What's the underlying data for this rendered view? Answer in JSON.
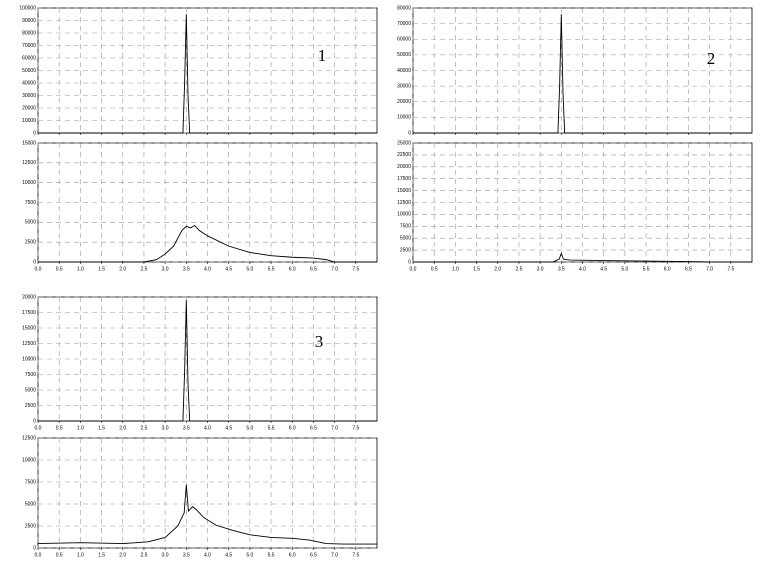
{
  "chart_data": [
    {
      "type": "line",
      "annotation": "1",
      "show_xtick_labels": false,
      "grid": true,
      "xlim": [
        0,
        8
      ],
      "ylim": [
        0,
        100000
      ],
      "xticks": [
        {
          "value": 0,
          "label": "0.0"
        },
        {
          "value": 0.5,
          "label": "0.5"
        },
        {
          "value": 1,
          "label": "1.0"
        },
        {
          "value": 1.5,
          "label": "1.5"
        },
        {
          "value": 2,
          "label": "2.0"
        },
        {
          "value": 2.5,
          "label": "2.5"
        },
        {
          "value": 3,
          "label": "3.0"
        },
        {
          "value": 3.5,
          "label": "3.5"
        },
        {
          "value": 4,
          "label": "4.0"
        },
        {
          "value": 4.5,
          "label": "4.5"
        },
        {
          "value": 5,
          "label": "5.0"
        },
        {
          "value": 5.5,
          "label": "5.5"
        },
        {
          "value": 6,
          "label": "6.0"
        },
        {
          "value": 6.5,
          "label": "6.5"
        },
        {
          "value": 7,
          "label": "7.0"
        },
        {
          "value": 7.5,
          "label": "7.5"
        }
      ],
      "yticks": [
        0,
        10000,
        20000,
        30000,
        40000,
        50000,
        60000,
        70000,
        80000,
        90000,
        100000
      ],
      "x": [
        0,
        3.42,
        3.46,
        3.5,
        3.54,
        3.58,
        8
      ],
      "series": [
        {
          "color": "#000000",
          "values": [
            0,
            0,
            40000,
            95000,
            30000,
            0,
            0
          ]
        }
      ]
    },
    {
      "type": "line",
      "show_xtick_labels": true,
      "grid": true,
      "xlim": [
        0,
        8
      ],
      "ylim": [
        0,
        15000
      ],
      "xticks": [
        {
          "value": 0,
          "label": "0.0"
        },
        {
          "value": 0.5,
          "label": "0.5"
        },
        {
          "value": 1,
          "label": "1.0"
        },
        {
          "value": 1.5,
          "label": "1.5"
        },
        {
          "value": 2,
          "label": "2.0"
        },
        {
          "value": 2.5,
          "label": "2.5"
        },
        {
          "value": 3,
          "label": "3.0"
        },
        {
          "value": 3.5,
          "label": "3.5"
        },
        {
          "value": 4,
          "label": "4.0"
        },
        {
          "value": 4.5,
          "label": "4.5"
        },
        {
          "value": 5,
          "label": "5.0"
        },
        {
          "value": 5.5,
          "label": "5.5"
        },
        {
          "value": 6,
          "label": "6.0"
        },
        {
          "value": 6.5,
          "label": "6.5"
        },
        {
          "value": 7,
          "label": "7.0"
        },
        {
          "value": 7.5,
          "label": "7.5"
        }
      ],
      "yticks": [
        0,
        2500,
        5000,
        7500,
        10000,
        12500,
        15000
      ],
      "x": [
        0,
        2.5,
        2.8,
        3.0,
        3.2,
        3.4,
        3.5,
        3.6,
        3.7,
        3.8,
        4.0,
        4.5,
        5.0,
        5.5,
        6.0,
        6.5,
        6.8,
        7.0,
        8
      ],
      "series": [
        {
          "color": "#000000",
          "values": [
            0,
            0,
            300,
            1000,
            2000,
            4000,
            4500,
            4300,
            4600,
            4000,
            3300,
            2000,
            1200,
            800,
            600,
            500,
            300,
            0,
            0
          ]
        }
      ]
    },
    {
      "type": "line",
      "annotation": "2",
      "show_xtick_labels": false,
      "grid": true,
      "xlim": [
        0,
        8
      ],
      "ylim": [
        0,
        80000
      ],
      "xticks": [
        {
          "value": 0,
          "label": "0.0"
        },
        {
          "value": 0.5,
          "label": "0.5"
        },
        {
          "value": 1,
          "label": "1.0"
        },
        {
          "value": 1.5,
          "label": "1.5"
        },
        {
          "value": 2,
          "label": "2.0"
        },
        {
          "value": 2.5,
          "label": "2.5"
        },
        {
          "value": 3,
          "label": "3.0"
        },
        {
          "value": 3.5,
          "label": "3.5"
        },
        {
          "value": 4,
          "label": "4.0"
        },
        {
          "value": 4.5,
          "label": "4.5"
        },
        {
          "value": 5,
          "label": "5.0"
        },
        {
          "value": 5.5,
          "label": "5.5"
        },
        {
          "value": 6,
          "label": "6.0"
        },
        {
          "value": 6.5,
          "label": "6.5"
        },
        {
          "value": 7,
          "label": "7.0"
        },
        {
          "value": 7.5,
          "label": "7.5"
        }
      ],
      "yticks": [
        0,
        10000,
        20000,
        30000,
        40000,
        50000,
        60000,
        70000,
        80000
      ],
      "x": [
        0,
        3.42,
        3.46,
        3.5,
        3.54,
        3.58,
        8
      ],
      "series": [
        {
          "color": "#000000",
          "values": [
            0,
            0,
            30000,
            76000,
            25000,
            0,
            0
          ]
        }
      ]
    },
    {
      "type": "line",
      "show_xtick_labels": true,
      "grid": true,
      "xlim": [
        0,
        8
      ],
      "ylim": [
        0,
        25000
      ],
      "xticks": [
        {
          "value": 0,
          "label": "0.0"
        },
        {
          "value": 0.5,
          "label": "0.5"
        },
        {
          "value": 1,
          "label": "1.0"
        },
        {
          "value": 1.5,
          "label": "1.5"
        },
        {
          "value": 2,
          "label": "2.0"
        },
        {
          "value": 2.5,
          "label": "2.5"
        },
        {
          "value": 3,
          "label": "3.0"
        },
        {
          "value": 3.5,
          "label": "3.5"
        },
        {
          "value": 4,
          "label": "4.0"
        },
        {
          "value": 4.5,
          "label": "4.5"
        },
        {
          "value": 5,
          "label": "5.0"
        },
        {
          "value": 5.5,
          "label": "5.5"
        },
        {
          "value": 6,
          "label": "6.0"
        },
        {
          "value": 6.5,
          "label": "6.5"
        },
        {
          "value": 7,
          "label": "7.0"
        },
        {
          "value": 7.5,
          "label": "7.5"
        }
      ],
      "yticks": [
        0,
        2500,
        5000,
        7500,
        10000,
        12500,
        15000,
        17500,
        20000,
        22500,
        25000
      ],
      "x": [
        0,
        3.3,
        3.45,
        3.5,
        3.55,
        3.7,
        4.5,
        5.5,
        6.5,
        7.0,
        8
      ],
      "series": [
        {
          "color": "#000000",
          "values": [
            0,
            0,
            600,
            1800,
            600,
            400,
            300,
            200,
            100,
            0,
            0
          ]
        }
      ]
    },
    {
      "type": "line",
      "annotation": "3",
      "show_xtick_labels": true,
      "grid": true,
      "xlim": [
        0,
        8
      ],
      "ylim": [
        0,
        20000
      ],
      "xticks": [
        {
          "value": 0,
          "label": "0.0"
        },
        {
          "value": 0.5,
          "label": "0.5"
        },
        {
          "value": 1,
          "label": "1.0"
        },
        {
          "value": 1.5,
          "label": "1.5"
        },
        {
          "value": 2,
          "label": "2.0"
        },
        {
          "value": 2.5,
          "label": "2.5"
        },
        {
          "value": 3,
          "label": "3.0"
        },
        {
          "value": 3.5,
          "label": "3.5"
        },
        {
          "value": 4,
          "label": "4.0"
        },
        {
          "value": 4.5,
          "label": "4.5"
        },
        {
          "value": 5,
          "label": "5.0"
        },
        {
          "value": 5.5,
          "label": "5.5"
        },
        {
          "value": 6,
          "label": "6.0"
        },
        {
          "value": 6.5,
          "label": "6.5"
        },
        {
          "value": 7,
          "label": "7.0"
        },
        {
          "value": 7.5,
          "label": "7.5"
        }
      ],
      "yticks": [
        0,
        2500,
        5000,
        7500,
        10000,
        12500,
        15000,
        17500,
        20000
      ],
      "x": [
        0,
        3.42,
        3.46,
        3.5,
        3.54,
        3.58,
        8
      ],
      "series": [
        {
          "color": "#000000",
          "values": [
            0,
            0,
            8000,
            19500,
            6000,
            0,
            0
          ]
        }
      ]
    },
    {
      "type": "line",
      "show_xtick_labels": true,
      "grid": true,
      "xlim": [
        0,
        8
      ],
      "ylim": [
        0,
        12500
      ],
      "xticks": [
        {
          "value": 0,
          "label": "0.0"
        },
        {
          "value": 0.5,
          "label": "0.5"
        },
        {
          "value": 1,
          "label": "1.0"
        },
        {
          "value": 1.5,
          "label": "1.5"
        },
        {
          "value": 2,
          "label": "2.0"
        },
        {
          "value": 2.5,
          "label": "2.5"
        },
        {
          "value": 3,
          "label": "3.0"
        },
        {
          "value": 3.5,
          "label": "3.5"
        },
        {
          "value": 4,
          "label": "4.0"
        },
        {
          "value": 4.5,
          "label": "4.5"
        },
        {
          "value": 5,
          "label": "5.0"
        },
        {
          "value": 5.5,
          "label": "5.5"
        },
        {
          "value": 6,
          "label": "6.0"
        },
        {
          "value": 6.5,
          "label": "6.5"
        },
        {
          "value": 7,
          "label": "7.0"
        },
        {
          "value": 7.5,
          "label": "7.5"
        }
      ],
      "yticks": [
        0,
        2500,
        5000,
        7500,
        10000,
        12500
      ],
      "x": [
        0,
        1.0,
        2.0,
        2.6,
        3.0,
        3.3,
        3.45,
        3.5,
        3.55,
        3.65,
        3.75,
        3.9,
        4.2,
        4.6,
        5.0,
        5.5,
        6.0,
        6.4,
        6.8,
        7.2,
        8
      ],
      "series": [
        {
          "color": "#000000",
          "values": [
            500,
            600,
            500,
            700,
            1200,
            2500,
            4000,
            7200,
            4200,
            4700,
            4300,
            3500,
            2600,
            2000,
            1500,
            1200,
            1100,
            900,
            500,
            450,
            450
          ]
        }
      ]
    }
  ]
}
